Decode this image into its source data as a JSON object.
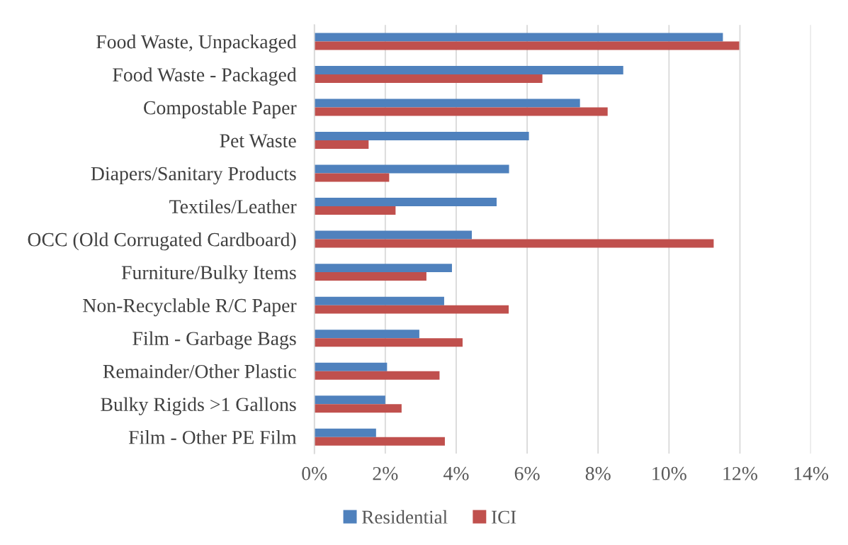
{
  "chart_data": {
    "type": "bar",
    "orientation": "horizontal",
    "categories": [
      "Food Waste, Unpackaged",
      "Food Waste - Packaged",
      "Compostable Paper",
      "Pet Waste",
      "Diapers/Sanitary Products",
      "Textiles/Leather",
      "OCC (Old Corrugated Cardboard)",
      "Furniture/Bulky Items",
      "Non-Recyclable R/C Paper",
      "Film - Garbage Bags",
      "Remainder/Other Plastic",
      "Bulky Rigids >1 Gallons",
      "Film - Other PE Film"
    ],
    "series": [
      {
        "name": "Residential",
        "color": "#4f81bd",
        "values": [
          11.52,
          8.71,
          7.49,
          6.05,
          5.49,
          5.14,
          4.44,
          3.88,
          3.66,
          2.96,
          2.05,
          2.0,
          1.74
        ]
      },
      {
        "name": "ICI",
        "color": "#c0504d",
        "values": [
          11.98,
          6.43,
          8.27,
          1.53,
          2.11,
          2.29,
          11.26,
          3.16,
          5.48,
          4.18,
          3.53,
          2.46,
          3.68
        ]
      }
    ],
    "xlim": [
      0,
      14
    ],
    "xticks": [
      {
        "value": 0,
        "label": "0%"
      },
      {
        "value": 2,
        "label": "2%"
      },
      {
        "value": 4,
        "label": "4%"
      },
      {
        "value": 6,
        "label": "6%"
      },
      {
        "value": 8,
        "label": "8%"
      },
      {
        "value": 10,
        "label": "10%"
      },
      {
        "value": 12,
        "label": "12%"
      },
      {
        "value": 14,
        "label": "14%"
      }
    ],
    "grid": "x",
    "legend": "bottom"
  }
}
